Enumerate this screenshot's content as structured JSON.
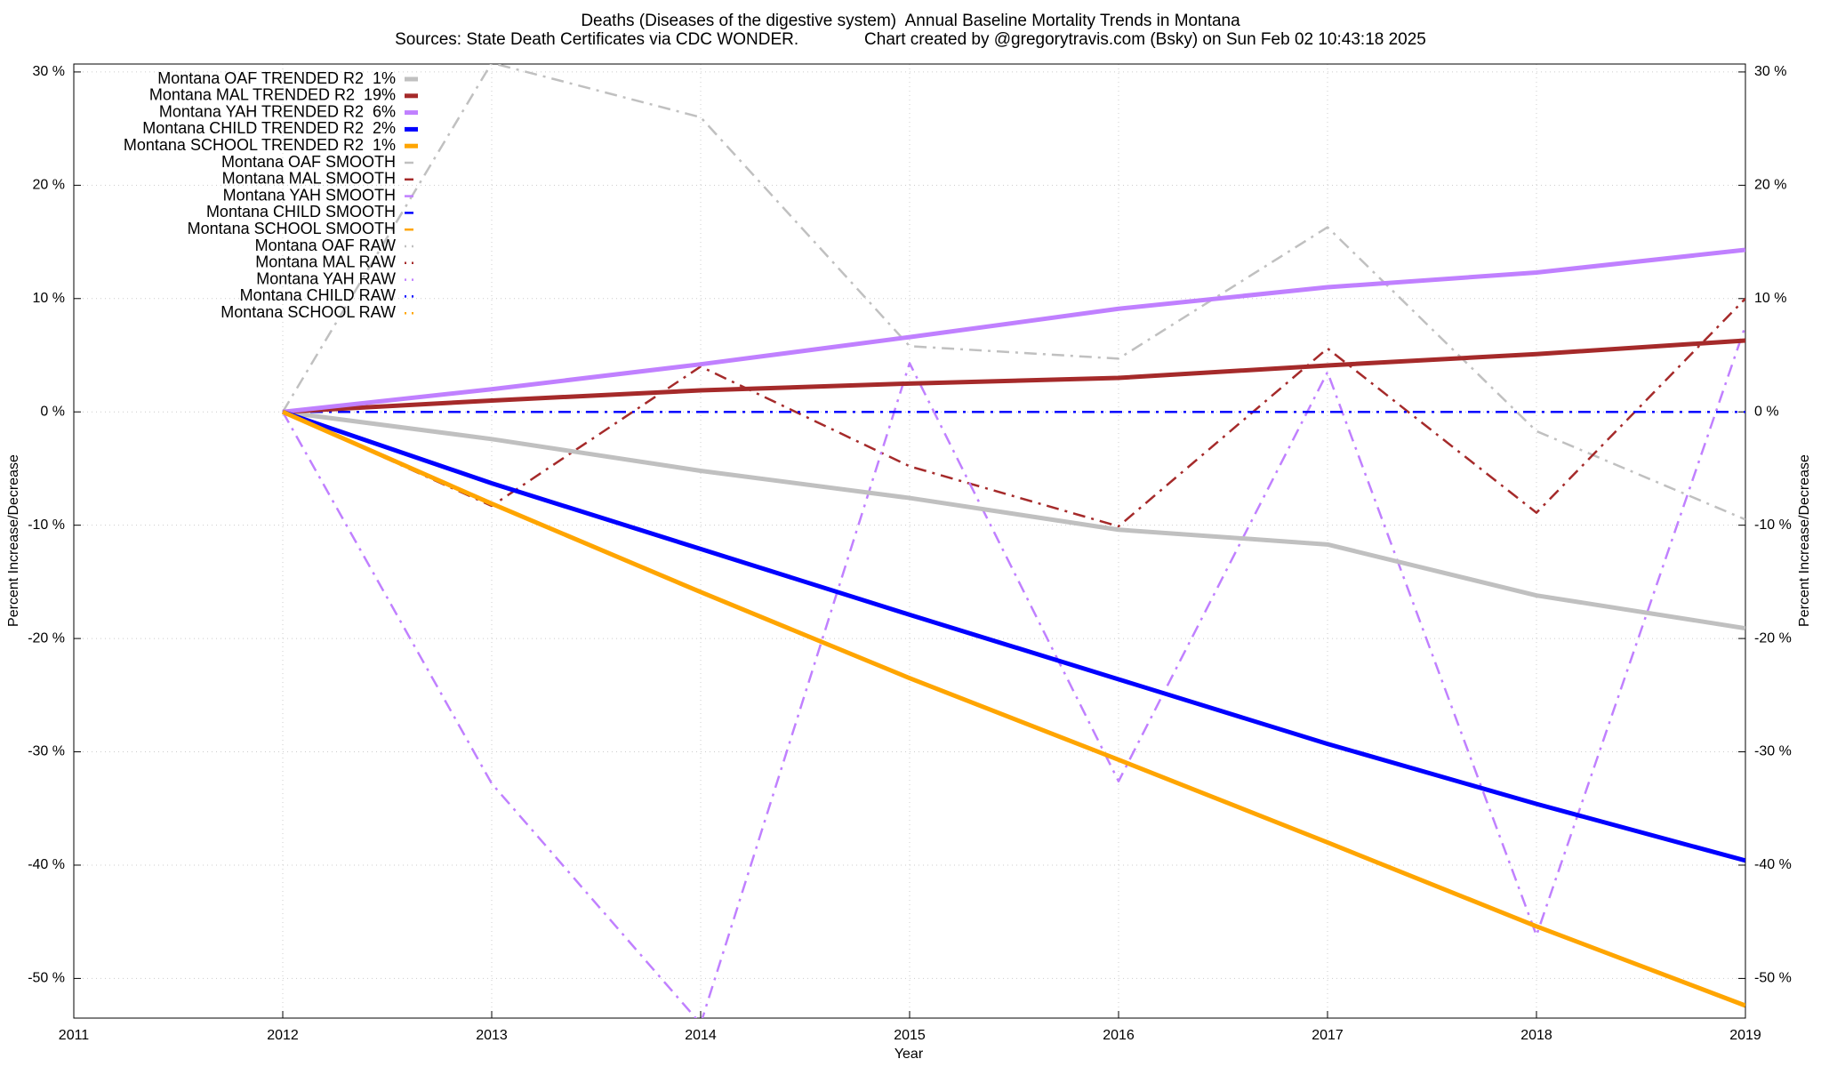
{
  "chart_data": {
    "type": "line",
    "title": "Deaths (Diseases of the digestive system)  Annual Baseline Mortality Trends in Montana",
    "subtitle": "Sources: State Death Certificates via CDC WONDER.              Chart created by @gregorytravis.com (Bsky) on Sun Feb 02 10:43:18 2025",
    "x_label": "Year",
    "y_label": "Percent Increase/Decrease",
    "y2_label": "Percent Increase/Decrease",
    "x": [
      2012,
      2013,
      2014,
      2015,
      2016,
      2017,
      2018,
      2019
    ],
    "xlim": [
      2011,
      2019
    ],
    "xticks": [
      2011,
      2012,
      2013,
      2014,
      2015,
      2016,
      2017,
      2018,
      2019
    ],
    "ylim": [
      -53.5,
      30.7
    ],
    "yticks": [
      {
        "value": -50,
        "label": "-50 %"
      },
      {
        "value": -40,
        "label": "-40 %"
      },
      {
        "value": -30,
        "label": "-30 %"
      },
      {
        "value": -20,
        "label": "-20 %"
      },
      {
        "value": -10,
        "label": "-10 %"
      },
      {
        "value": 0,
        "label": "0 %"
      },
      {
        "value": 10,
        "label": "10 %"
      },
      {
        "value": 20,
        "label": "20 %"
      },
      {
        "value": 30,
        "label": "30 %"
      }
    ],
    "grid": true,
    "legend": "top-left",
    "series": [
      {
        "name": "Montana OAF TRENDED R2  1%",
        "style": "solid",
        "color": "#c0c0c0",
        "values": [
          0,
          -2.4,
          -5.2,
          -7.6,
          -10.4,
          -11.7,
          -16.2,
          -19.1
        ]
      },
      {
        "name": "Montana MAL TRENDED R2  19%",
        "style": "solid",
        "color": "#a52a2a",
        "values": [
          0,
          1.0,
          1.9,
          2.5,
          3.0,
          4.1,
          5.1,
          6.3
        ]
      },
      {
        "name": "Montana YAH TRENDED R2  6%",
        "style": "solid",
        "color": "#c080ff",
        "values": [
          0,
          2.0,
          4.2,
          6.6,
          9.1,
          11.0,
          12.3,
          14.3
        ]
      },
      {
        "name": "Montana CHILD TRENDED R2  2%",
        "style": "solid",
        "color": "#0000ff",
        "values": [
          0,
          -6.3,
          -12.1,
          -17.9,
          -23.6,
          -29.3,
          -34.6,
          -39.6
        ]
      },
      {
        "name": "Montana SCHOOL TRENDED R2  1%",
        "style": "solid",
        "color": "#ffa500",
        "values": [
          0,
          -8.1,
          -15.9,
          -23.5,
          -30.7,
          -38.0,
          -45.4,
          -52.4
        ]
      },
      {
        "name": "Montana OAF SMOOTH",
        "style": "dashed",
        "color": "#c0c0c0",
        "values": [
          0,
          30.8,
          26.0,
          5.8,
          4.7,
          16.3,
          -1.7,
          -9.5
        ]
      },
      {
        "name": "Montana MAL SMOOTH",
        "style": "dashed",
        "color": "#a52a2a",
        "values": [
          0,
          -8.3,
          4.0,
          -4.8,
          -10.1,
          5.6,
          -8.9,
          10.0
        ]
      },
      {
        "name": "Montana YAH SMOOTH",
        "style": "dashed",
        "color": "#c080ff",
        "values": [
          0,
          -32.8,
          -54.0,
          4.3,
          -32.6,
          3.5,
          -46.2,
          7.6
        ]
      },
      {
        "name": "Montana CHILD SMOOTH",
        "style": "dashed",
        "color": "#0000ff",
        "values": [
          0,
          0,
          0,
          0,
          0,
          0,
          0,
          0
        ]
      },
      {
        "name": "Montana SCHOOL SMOOTH",
        "style": "dashed",
        "color": "#ffa500",
        "values": [
          null,
          null,
          null,
          null,
          null,
          null,
          null,
          null
        ]
      },
      {
        "name": "Montana OAF RAW",
        "style": "dotted",
        "color": "#c0c0c0",
        "values": [
          null,
          null,
          null,
          null,
          null,
          null,
          null,
          null
        ]
      },
      {
        "name": "Montana MAL RAW",
        "style": "dotted",
        "color": "#a52a2a",
        "values": [
          null,
          null,
          null,
          null,
          null,
          null,
          null,
          null
        ]
      },
      {
        "name": "Montana YAH RAW",
        "style": "dotted",
        "color": "#c080ff",
        "values": [
          null,
          null,
          null,
          null,
          null,
          null,
          null,
          null
        ]
      },
      {
        "name": "Montana CHILD RAW",
        "style": "dotted",
        "color": "#0000ff",
        "values": [
          null,
          null,
          null,
          null,
          null,
          null,
          null,
          null
        ]
      },
      {
        "name": "Montana SCHOOL RAW",
        "style": "dotted",
        "color": "#ffa500",
        "values": [
          null,
          null,
          null,
          null,
          null,
          null,
          null,
          null
        ]
      }
    ]
  }
}
